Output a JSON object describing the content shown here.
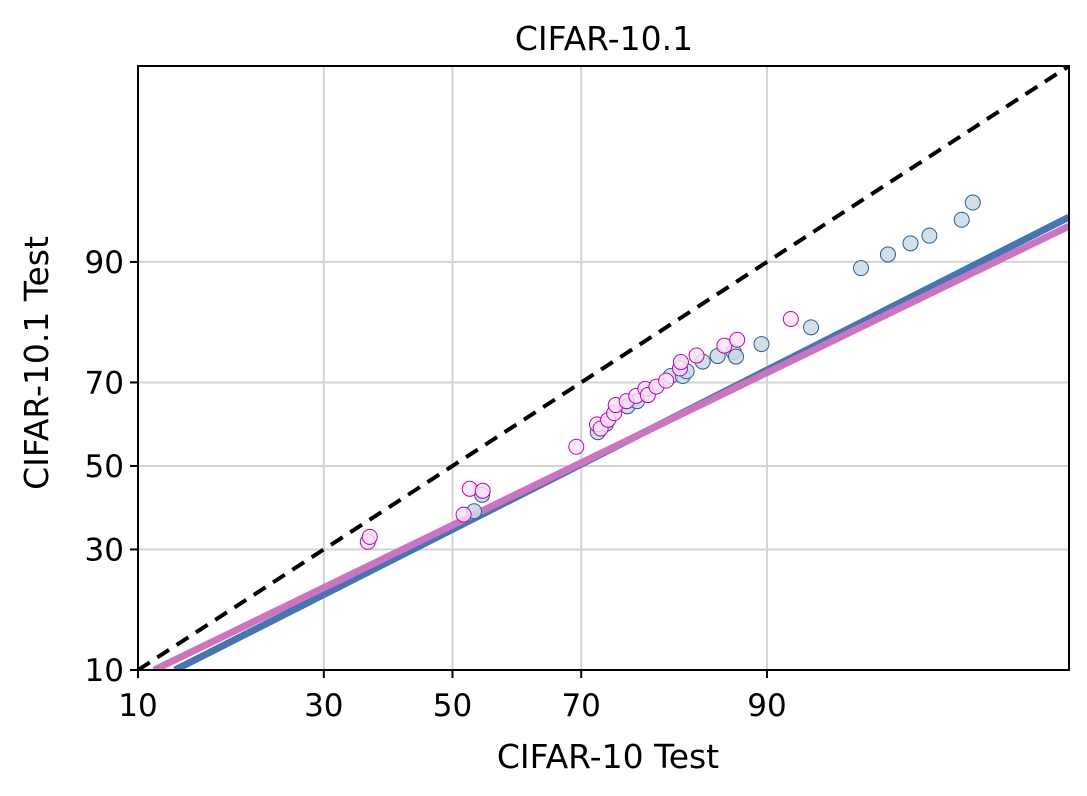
{
  "chart_data": {
    "type": "scatter",
    "title": "CIFAR-10.1",
    "xlabel": "CIFAR-10 Test",
    "ylabel": "CIFAR-10.1 Test",
    "scale": "probit",
    "xlim": [
      10,
      99.4
    ],
    "ylim": [
      10,
      99.4
    ],
    "xticks": [
      10,
      30,
      50,
      70,
      90
    ],
    "yticks": [
      10,
      30,
      50,
      70,
      90
    ],
    "grid": true,
    "legend": "none",
    "colors": {
      "series_a_fill": "#c9d9e8",
      "series_a_edge": "#2f5d8a",
      "series_a_fit": "#4675b3",
      "series_b_fill": "#fbe3f6",
      "series_b_edge": "#c000c0",
      "series_b_fit": "#cc74c0",
      "diagonal": "#000000",
      "grid": "#d3d3d3"
    },
    "series": [
      {
        "points": [
          [
            53.5,
            38.8
          ],
          [
            54.8,
            42.8
          ],
          [
            72.3,
            58.4
          ],
          [
            73.4,
            60.4
          ],
          [
            76.2,
            64.6
          ],
          [
            77.4,
            65.8
          ],
          [
            81.3,
            71.4
          ],
          [
            82.6,
            71.4
          ],
          [
            83.0,
            72.4
          ],
          [
            84.6,
            74.4
          ],
          [
            86.0,
            75.5
          ],
          [
            87.4,
            76.3
          ],
          [
            87.6,
            75.4
          ],
          [
            89.6,
            77.8
          ],
          [
            92.8,
            80.8
          ],
          [
            95.2,
            89.3
          ],
          [
            96.2,
            90.8
          ],
          [
            96.9,
            91.9
          ],
          [
            97.4,
            92.6
          ],
          [
            98.1,
            93.9
          ],
          [
            98.3,
            95.1
          ]
        ],
        "fit": [
          [
            12.9,
            10.0
          ],
          [
            99.4,
            94.1
          ]
        ]
      },
      {
        "points": [
          [
            36.5,
            31.7
          ],
          [
            36.8,
            32.8
          ],
          [
            51.8,
            38.0
          ],
          [
            52.8,
            44.3
          ],
          [
            54.9,
            43.8
          ],
          [
            69.3,
            54.8
          ],
          [
            72.2,
            60.3
          ],
          [
            72.7,
            59.3
          ],
          [
            73.7,
            61.4
          ],
          [
            74.5,
            63.0
          ],
          [
            74.7,
            64.9
          ],
          [
            76.1,
            65.8
          ],
          [
            77.3,
            67.0
          ],
          [
            78.4,
            68.6
          ],
          [
            78.7,
            67.2
          ],
          [
            79.7,
            69.1
          ],
          [
            80.8,
            70.4
          ],
          [
            82.3,
            73.0
          ],
          [
            82.4,
            74.3
          ],
          [
            84.0,
            75.6
          ],
          [
            86.6,
            77.5
          ],
          [
            87.7,
            78.6
          ],
          [
            91.6,
            82.2
          ]
        ],
        "fit": [
          [
            11.2,
            10.0
          ],
          [
            99.4,
            93.4
          ]
        ]
      }
    ],
    "diagonal": [
      [
        10,
        10
      ],
      [
        99.4,
        99.4
      ]
    ]
  }
}
